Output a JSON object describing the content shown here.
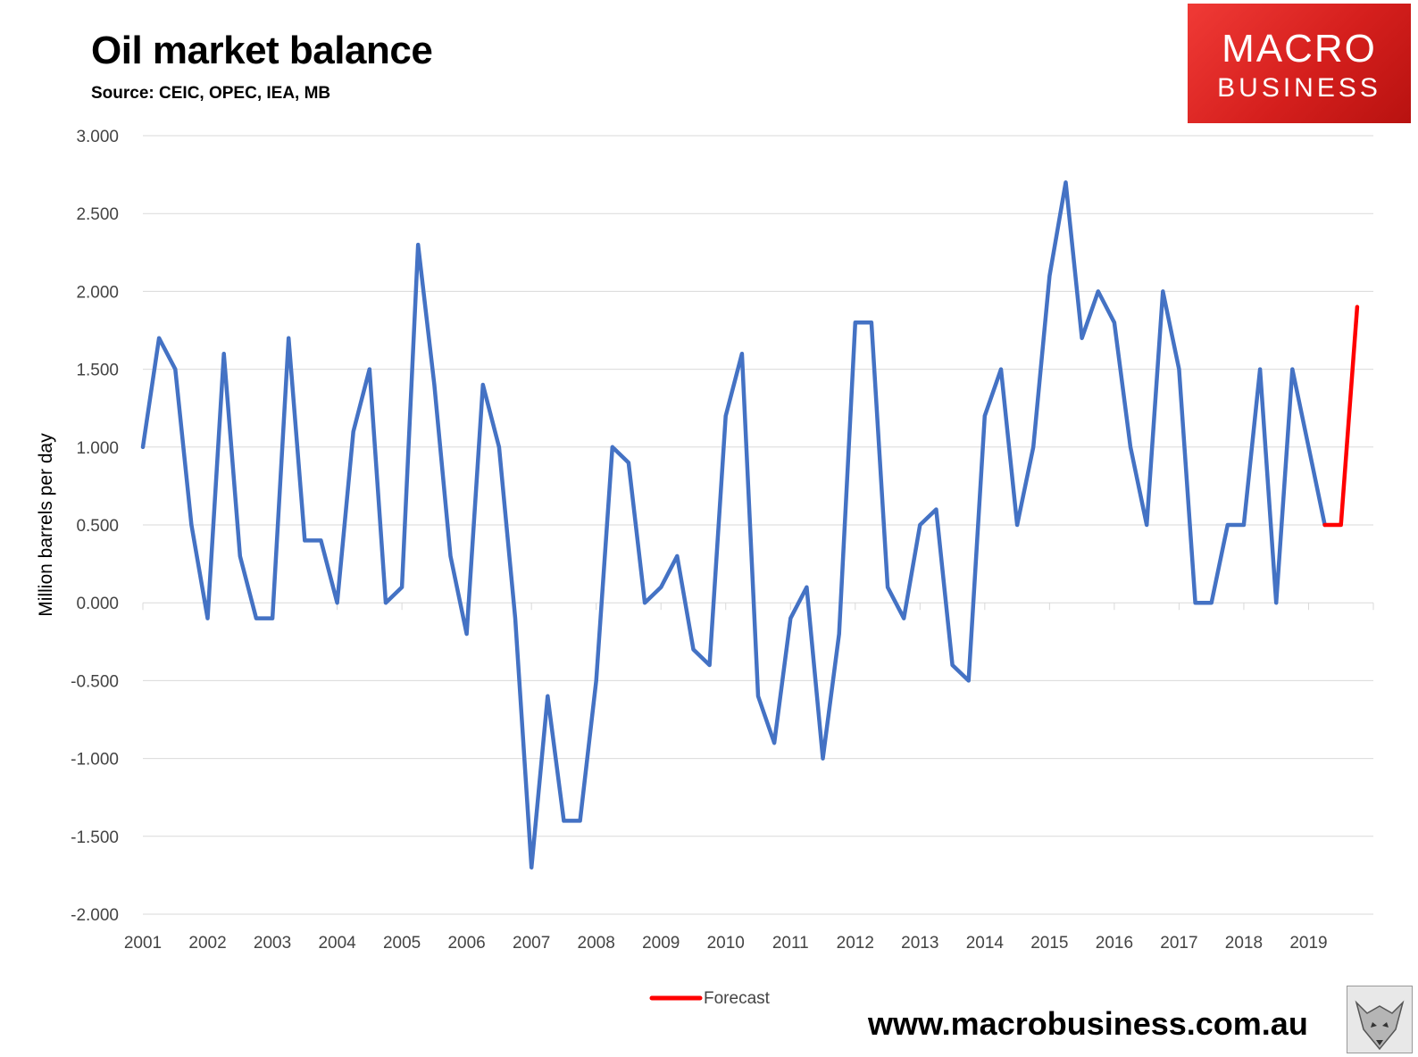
{
  "header": {
    "title": "Oil market balance",
    "source": "Source: CEIC, OPEC, IEA, MB"
  },
  "logo": {
    "line1": "MACRO",
    "line2": "BUSINESS"
  },
  "footer": {
    "website": "www.macrobusiness.com.au"
  },
  "colors": {
    "history": "#4472c4",
    "forecast": "#ff0000",
    "logo": "#d51f1d",
    "grid": "#d9d9d9"
  },
  "chart_data": {
    "type": "line",
    "title": "Oil market balance",
    "ylabel": "Million barrels per day",
    "xlabel": "",
    "ylim": [
      -2.0,
      3.0
    ],
    "y_ticks": [
      "3.000",
      "2.500",
      "2.000",
      "1.500",
      "1.000",
      "0.500",
      "0.000",
      "-0.500",
      "-1.000",
      "-1.500",
      "-2.000"
    ],
    "x_tick_labels": [
      "2001",
      "2002",
      "2003",
      "2004",
      "2005",
      "2006",
      "2007",
      "2008",
      "2009",
      "2010",
      "2011",
      "2012",
      "2013",
      "2014",
      "2015",
      "2016",
      "2017",
      "2018",
      "2019"
    ],
    "grid": "horizontal",
    "legend_position": "bottom",
    "series": [
      {
        "name": "",
        "color": "#4472c4",
        "points_per_year": 4,
        "values": [
          1.0,
          1.7,
          1.5,
          0.5,
          -0.1,
          1.6,
          0.3,
          -0.1,
          -0.1,
          1.7,
          0.4,
          0.4,
          0.0,
          1.1,
          1.5,
          0.0,
          0.1,
          2.3,
          1.4,
          0.3,
          -0.2,
          1.4,
          1.0,
          -0.1,
          -1.7,
          -0.6,
          -1.4,
          -1.4,
          -0.5,
          1.0,
          0.9,
          0.0,
          0.1,
          0.3,
          -0.3,
          -0.4,
          1.2,
          1.6,
          -0.6,
          -0.9,
          -0.1,
          0.1,
          -1.0,
          -0.2,
          1.8,
          1.8,
          0.1,
          -0.1,
          0.5,
          0.6,
          -0.4,
          -0.5,
          1.2,
          1.5,
          0.5,
          1.0,
          2.1,
          2.7,
          1.7,
          2.0,
          1.8,
          1.0,
          0.5,
          2.0,
          1.5,
          0.0,
          0.0,
          0.5,
          0.5,
          1.5,
          0.0,
          1.5,
          1.0,
          0.5
        ]
      },
      {
        "name": "Forecast",
        "color": "#ff0000",
        "start_index": 73,
        "values": [
          0.5,
          0.5,
          1.9
        ]
      }
    ]
  }
}
